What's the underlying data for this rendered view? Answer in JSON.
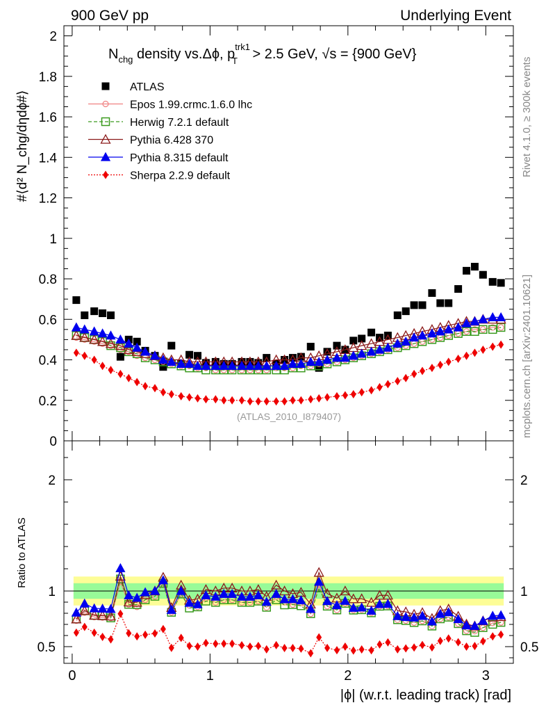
{
  "header": {
    "left": "900 GeV pp",
    "right": "Underlying Event"
  },
  "side_labels": {
    "rivet": "Rivet 4.1.0, ≥ 300k events",
    "mcplots": "mcplots.cern.ch [arXiv:2401.10621]"
  },
  "analysis_tag": "(ATLAS_2010_I879407)",
  "colors": {
    "atlas": "#000000",
    "epos": "#f08080",
    "herwig": "#3a9a1e",
    "pythia6": "#8b1a1a",
    "pythia8": "#0000ee",
    "sherpa": "#ee0000",
    "band_inner": "#98fb98",
    "band_outer": "#fdfd96"
  },
  "chart_data": [
    {
      "type": "scatter",
      "title_parts": {
        "n": "N",
        "n_sub": "chg",
        "mid": " density vs.",
        "dphi": "Δϕ",
        "sep": ", p",
        "pt_sup": "trk1",
        "pt_sub": "T",
        "cut": " > 2.5 GeV, ",
        "sqrt": "√s",
        "energy": " = {900 GeV}"
      },
      "ylabel": "#⟨d² N_chg/dηdϕ#⟩",
      "ylim": [
        0,
        2.05
      ],
      "xlim": [
        -0.06,
        3.2
      ],
      "yticks": [
        0,
        0.2,
        0.4,
        0.6,
        0.8,
        1,
        1.2,
        1.4,
        1.6,
        1.8,
        2
      ],
      "ytick_labels": [
        "0",
        "0.2",
        "0.4",
        "0.6",
        "0.8",
        "1",
        "1.2",
        "1.4",
        "1.6",
        "1.8",
        "2"
      ],
      "x": [
        0.03,
        0.09,
        0.16,
        0.22,
        0.28,
        0.35,
        0.41,
        0.47,
        0.53,
        0.6,
        0.66,
        0.72,
        0.79,
        0.85,
        0.91,
        0.97,
        1.04,
        1.1,
        1.16,
        1.23,
        1.29,
        1.35,
        1.41,
        1.48,
        1.54,
        1.6,
        1.66,
        1.73,
        1.79,
        1.85,
        1.92,
        1.98,
        2.04,
        2.1,
        2.17,
        2.23,
        2.29,
        2.36,
        2.42,
        2.48,
        2.54,
        2.61,
        2.67,
        2.73,
        2.8,
        2.86,
        2.92,
        2.98,
        3.05,
        3.11
      ],
      "series": [
        {
          "name": "ATLAS",
          "key": "atlas",
          "marker": "square",
          "line": "none",
          "values": [
            0.695,
            0.62,
            0.64,
            0.63,
            0.62,
            0.415,
            0.5,
            0.49,
            0.445,
            0.42,
            0.365,
            0.47,
            0.38,
            0.425,
            0.42,
            0.385,
            0.39,
            0.38,
            0.38,
            0.39,
            0.39,
            0.385,
            0.41,
            0.38,
            0.4,
            0.41,
            0.415,
            0.465,
            0.36,
            0.44,
            0.47,
            0.45,
            0.495,
            0.505,
            0.535,
            0.51,
            0.52,
            0.62,
            0.64,
            0.67,
            0.67,
            0.73,
            0.68,
            0.68,
            0.75,
            0.84,
            0.86,
            0.82,
            0.785,
            0.78
          ]
        },
        {
          "name": "Epos 1.99.crmc.1.6.0 lhc",
          "key": "epos",
          "marker": "cross-circle",
          "line": "solid",
          "values": [
            0.51,
            0.5,
            0.49,
            0.48,
            0.47,
            0.45,
            0.44,
            0.42,
            0.41,
            0.4,
            0.39,
            0.38,
            0.37,
            0.37,
            0.36,
            0.36,
            0.35,
            0.35,
            0.35,
            0.35,
            0.35,
            0.35,
            0.35,
            0.36,
            0.36,
            0.36,
            0.37,
            0.37,
            0.38,
            0.38,
            0.39,
            0.4,
            0.41,
            0.42,
            0.43,
            0.44,
            0.45,
            0.46,
            0.47,
            0.48,
            0.49,
            0.5,
            0.51,
            0.52,
            0.53,
            0.54,
            0.55,
            0.55,
            0.56,
            0.56
          ]
        },
        {
          "name": "Herwig 7.2.1 default",
          "key": "herwig",
          "marker": "open-square",
          "line": "dashed",
          "values": [
            0.52,
            0.51,
            0.5,
            0.49,
            0.47,
            0.46,
            0.44,
            0.43,
            0.41,
            0.4,
            0.39,
            0.38,
            0.37,
            0.36,
            0.36,
            0.35,
            0.35,
            0.35,
            0.35,
            0.35,
            0.35,
            0.35,
            0.35,
            0.35,
            0.35,
            0.36,
            0.36,
            0.37,
            0.37,
            0.38,
            0.39,
            0.4,
            0.41,
            0.42,
            0.43,
            0.44,
            0.45,
            0.46,
            0.47,
            0.48,
            0.49,
            0.5,
            0.51,
            0.52,
            0.53,
            0.54,
            0.54,
            0.55,
            0.55,
            0.56
          ]
        },
        {
          "name": "Pythia 6.428 370",
          "key": "pythia6",
          "marker": "open-triangle",
          "line": "solid",
          "values": [
            0.52,
            0.51,
            0.5,
            0.49,
            0.48,
            0.47,
            0.45,
            0.44,
            0.43,
            0.42,
            0.41,
            0.4,
            0.4,
            0.39,
            0.39,
            0.39,
            0.39,
            0.39,
            0.39,
            0.39,
            0.39,
            0.39,
            0.39,
            0.4,
            0.4,
            0.4,
            0.41,
            0.41,
            0.42,
            0.43,
            0.44,
            0.45,
            0.46,
            0.47,
            0.48,
            0.49,
            0.5,
            0.51,
            0.52,
            0.53,
            0.54,
            0.55,
            0.56,
            0.57,
            0.58,
            0.59,
            0.59,
            0.6,
            0.6,
            0.6
          ]
        },
        {
          "name": "Pythia 8.315 default",
          "key": "pythia8",
          "marker": "triangle",
          "line": "solid",
          "values": [
            0.56,
            0.55,
            0.54,
            0.53,
            0.52,
            0.5,
            0.48,
            0.46,
            0.44,
            0.42,
            0.4,
            0.39,
            0.38,
            0.38,
            0.37,
            0.37,
            0.37,
            0.37,
            0.37,
            0.37,
            0.37,
            0.37,
            0.37,
            0.37,
            0.37,
            0.38,
            0.38,
            0.39,
            0.39,
            0.4,
            0.41,
            0.41,
            0.42,
            0.43,
            0.44,
            0.45,
            0.46,
            0.48,
            0.49,
            0.51,
            0.52,
            0.53,
            0.54,
            0.55,
            0.56,
            0.58,
            0.59,
            0.6,
            0.61,
            0.61
          ]
        },
        {
          "name": "Sherpa 2.2.9 default",
          "key": "sherpa",
          "marker": "diamond",
          "line": "dotted",
          "values": [
            0.435,
            0.42,
            0.4,
            0.37,
            0.35,
            0.33,
            0.31,
            0.29,
            0.27,
            0.26,
            0.24,
            0.23,
            0.22,
            0.215,
            0.21,
            0.205,
            0.205,
            0.2,
            0.2,
            0.2,
            0.195,
            0.195,
            0.195,
            0.195,
            0.195,
            0.2,
            0.2,
            0.205,
            0.21,
            0.215,
            0.22,
            0.225,
            0.23,
            0.24,
            0.25,
            0.265,
            0.28,
            0.295,
            0.31,
            0.33,
            0.345,
            0.36,
            0.375,
            0.39,
            0.405,
            0.42,
            0.435,
            0.45,
            0.465,
            0.475
          ]
        }
      ]
    },
    {
      "type": "line",
      "ylabel": "Ratio to ATLAS",
      "xlabel": "|ϕ| (w.r.t. leading track) [rad]",
      "ylim": [
        0.35,
        2.35
      ],
      "xlim": [
        -0.06,
        3.2
      ],
      "yticks": [
        0.5,
        1,
        2
      ],
      "ytick_labels": [
        "0.5",
        "1",
        "2"
      ],
      "right_tick_labels": [
        "0.5",
        "1",
        "2"
      ],
      "xticks": [
        0,
        1,
        2,
        3
      ],
      "xtick_labels": [
        "0",
        "1",
        "2",
        "3"
      ],
      "reference": 1,
      "band_inner": [
        0.93,
        1.07
      ],
      "band_outer": [
        0.87,
        1.13
      ]
    }
  ]
}
